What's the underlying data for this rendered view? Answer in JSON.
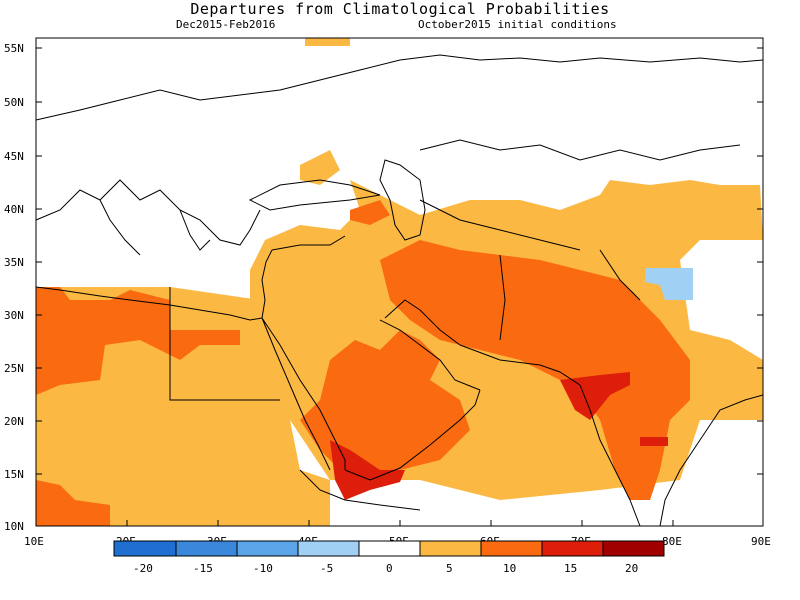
{
  "title": "Departures from Climatological Probabilities",
  "subtitle_left": "Dec2015-Feb2016",
  "subtitle_right": "October2015 initial conditions",
  "lat_labels": [
    "55N",
    "50N",
    "45N",
    "40N",
    "35N",
    "30N",
    "25N",
    "20N",
    "15N",
    "10N"
  ],
  "lon_labels": [
    "10E",
    "20E",
    "30E",
    "40E",
    "50E",
    "60E",
    "70E",
    "80E",
    "90E"
  ],
  "legend": {
    "labels": [
      "-20",
      "-15",
      "-10",
      "-5",
      "0",
      "5",
      "10",
      "15",
      "20"
    ],
    "colors": [
      "#1e6fd0",
      "#3a87dc",
      "#5aa5e8",
      "#a0d0f4",
      "#ffffff",
      "#fbb944",
      "#fa6a10",
      "#dc1e0a",
      "#a00000"
    ]
  },
  "colors": {
    "warm5": "#fbb944",
    "warm10": "#fa6a10",
    "warm15": "#dc1e0a",
    "cool5": "#a0d0f4",
    "frame": "#000000"
  }
}
